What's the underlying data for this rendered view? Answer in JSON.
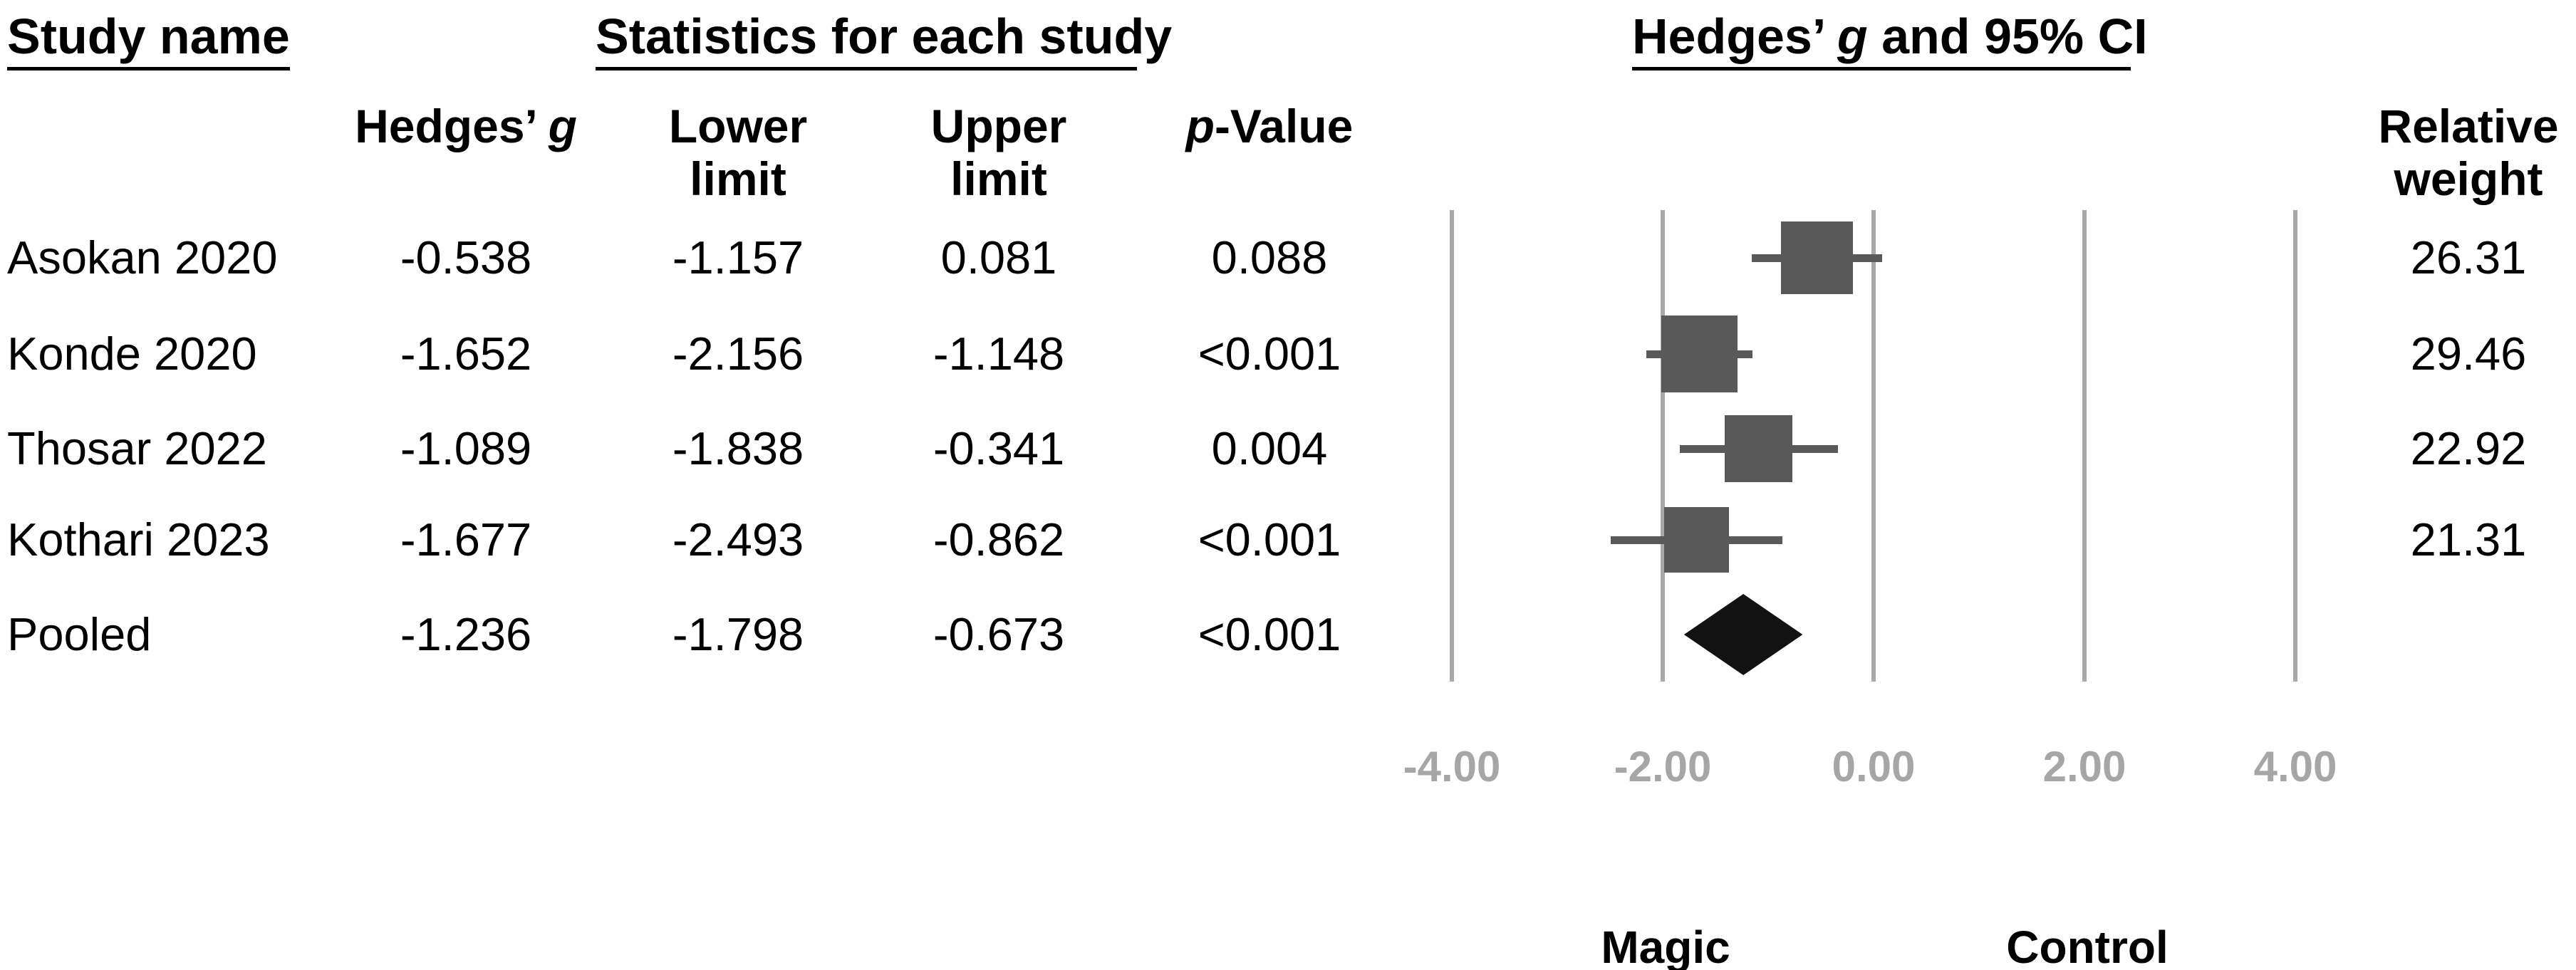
{
  "title_row": {
    "study": "Study name",
    "statistics": "Statistics for each study",
    "plot_prefix": "Hedges’ ",
    "plot_italic": "g",
    "plot_suffix": " and 95% CI"
  },
  "column_headers": {
    "hedges_prefix": "Hedges’ ",
    "hedges_italic": "g",
    "lower_line1": "Lower",
    "lower_line2": "limit",
    "upper_line1": "Upper",
    "upper_line2": "limit",
    "p_italic": "p",
    "p_suffix": "-Value",
    "weight_line1": "Relative",
    "weight_line2": "weight"
  },
  "chart_data": {
    "type": "forest",
    "x_axis": {
      "min": -4,
      "max": 4,
      "tick_values": [
        -4,
        -2,
        0,
        2,
        4
      ],
      "tick_labels": [
        "-4.00",
        "-2.00",
        "0.00",
        "2.00",
        "4.00"
      ]
    },
    "studies": [
      {
        "name": "Asokan 2020",
        "g": "-0.538",
        "lower": "-1.157",
        "upper": "0.081",
        "p": "0.088",
        "weight": "26.31"
      },
      {
        "name": "Konde 2020",
        "g": "-1.652",
        "lower": "-2.156",
        "upper": "-1.148",
        "p": "<0.001",
        "weight": "29.46"
      },
      {
        "name": "Thosar 2022",
        "g": "-1.089",
        "lower": "-1.838",
        "upper": "-0.341",
        "p": "0.004",
        "weight": "22.92"
      },
      {
        "name": "Kothari 2023",
        "g": "-1.677",
        "lower": "-2.493",
        "upper": "-0.862",
        "p": "<0.001",
        "weight": "21.31"
      }
    ],
    "pooled": {
      "name": "Pooled",
      "g": "-1.236",
      "lower": "-1.798",
      "upper": "-0.673",
      "p": "<0.001"
    },
    "group_labels": {
      "left": "Magic",
      "right": "Control"
    },
    "colors": {
      "marker": "#595959",
      "diamond": "#121212",
      "gridline": "#a8a8a8",
      "axis_text": "#a6a6a6",
      "text": "#000000"
    }
  }
}
